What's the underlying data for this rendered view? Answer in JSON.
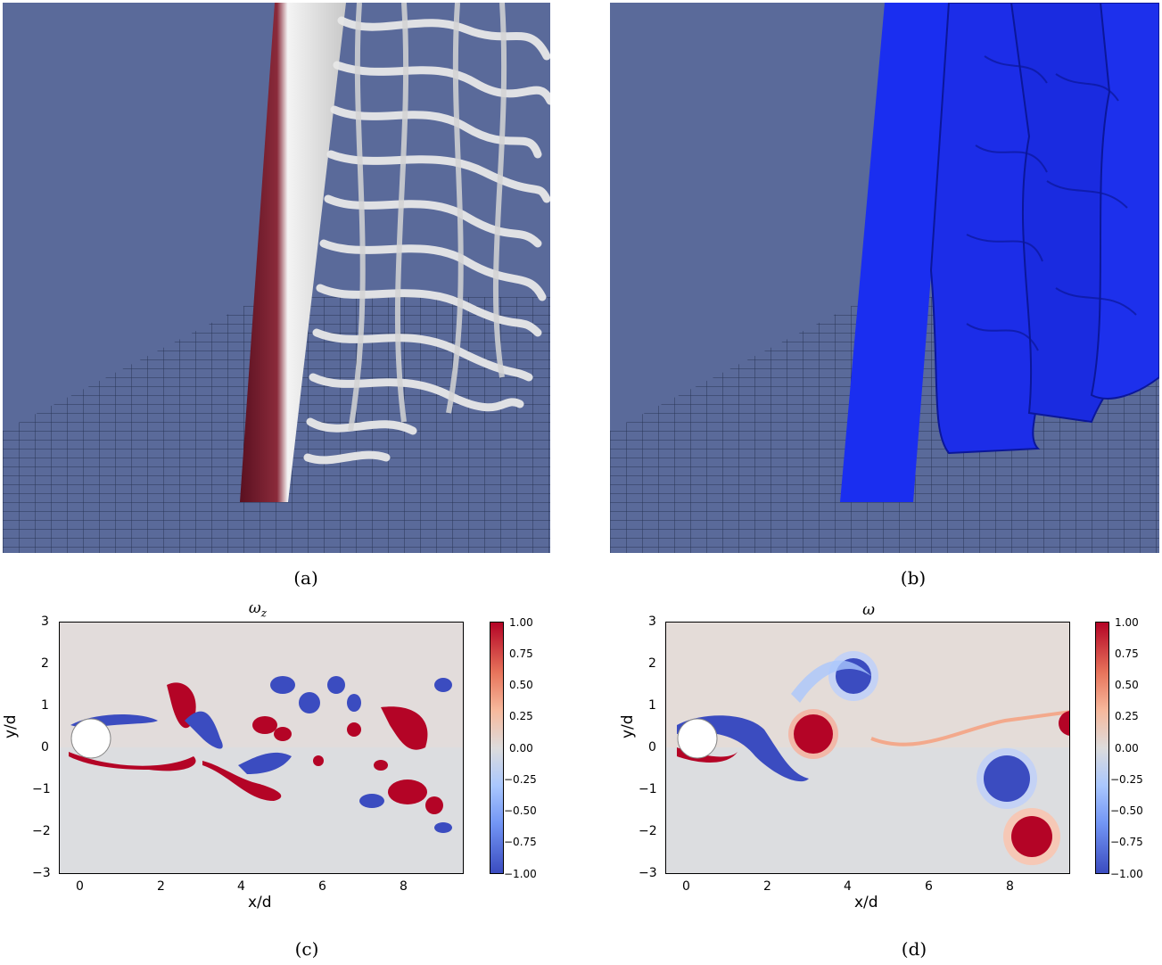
{
  "captions": {
    "a": "(a)",
    "b": "(b)",
    "c": "(c)",
    "d": "(d)"
  },
  "plot_c": {
    "title": "ωz",
    "title_main": "ω",
    "title_sub": "z",
    "xlabel": "x/d",
    "ylabel": "y/d",
    "xticks": [
      "0",
      "2",
      "4",
      "6",
      "8"
    ],
    "yticks": [
      "3",
      "2",
      "1",
      "0",
      "−1",
      "−2",
      "−3"
    ],
    "cbticks": [
      "1.00",
      "0.75",
      "0.50",
      "0.25",
      "0.00",
      "−0.25",
      "−0.50",
      "−0.75",
      "−1.00"
    ]
  },
  "plot_d": {
    "title": "ω",
    "xlabel": "x/d",
    "ylabel": "y/d",
    "xticks": [
      "0",
      "2",
      "4",
      "6",
      "8"
    ],
    "yticks": [
      "3",
      "2",
      "1",
      "0",
      "−1",
      "−2",
      "−3"
    ],
    "cbticks": [
      "1.00",
      "0.75",
      "0.50",
      "0.25",
      "0.00",
      "−0.25",
      "−0.50",
      "−0.75",
      "−1.00"
    ]
  },
  "colors": {
    "background_render": "#5a6a9a",
    "positive": "#b40426",
    "negative": "#3b4cc0",
    "neutral": "#dddcdc"
  }
}
